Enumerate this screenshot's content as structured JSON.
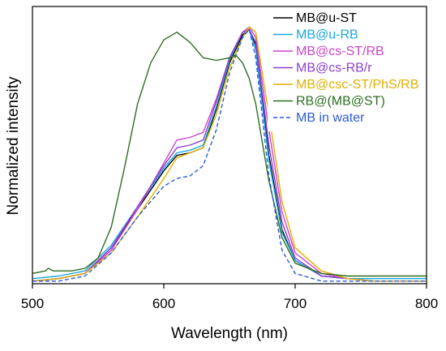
{
  "chart_data": {
    "type": "line",
    "title": "",
    "xlabel": "Wavelength (nm)",
    "ylabel": "Normalized intensity",
    "xlim": [
      500,
      800
    ],
    "ylim": [
      0,
      1.08
    ],
    "xticks": [
      500,
      600,
      700,
      800
    ],
    "xtick_labels": [
      "500",
      "600",
      "700",
      "800"
    ],
    "grid": false,
    "legend_position": "top-right",
    "series": [
      {
        "name": "MB@u-ST",
        "color": "#000000",
        "dash": "solid",
        "x": [
          500,
          520,
          540,
          560,
          580,
          600,
          610,
          620,
          630,
          640,
          650,
          660,
          665,
          670,
          680,
          690,
          700,
          720,
          740,
          760,
          800
        ],
        "y": [
          0.01,
          0.02,
          0.04,
          0.14,
          0.29,
          0.44,
          0.5,
          0.51,
          0.53,
          0.68,
          0.86,
          0.97,
          0.99,
          0.93,
          0.5,
          0.21,
          0.09,
          0.03,
          0.02,
          0.01,
          0.01
        ]
      },
      {
        "name": "MB@u-RB",
        "color": "#1aa7e0",
        "dash": "solid",
        "x": [
          500,
          520,
          540,
          560,
          580,
          600,
          610,
          620,
          630,
          640,
          650,
          660,
          665,
          670,
          680,
          690,
          700,
          720,
          740,
          760,
          800
        ],
        "y": [
          0.02,
          0.03,
          0.05,
          0.15,
          0.3,
          0.45,
          0.51,
          0.52,
          0.54,
          0.69,
          0.87,
          0.98,
          0.99,
          0.91,
          0.48,
          0.2,
          0.09,
          0.03,
          0.02,
          0.02,
          0.02
        ]
      },
      {
        "name": "MB@cs-ST/RB",
        "color": "#cc44cc",
        "dash": "solid",
        "x": [
          500,
          520,
          540,
          560,
          580,
          600,
          610,
          620,
          630,
          640,
          650,
          660,
          665,
          670,
          680,
          690,
          700,
          720,
          740,
          760,
          800
        ],
        "y": [
          0.01,
          0.02,
          0.04,
          0.13,
          0.29,
          0.47,
          0.56,
          0.57,
          0.59,
          0.72,
          0.88,
          0.98,
          1.0,
          0.96,
          0.6,
          0.28,
          0.12,
          0.04,
          0.02,
          0.01,
          0.01
        ]
      },
      {
        "name": "MB@cs-RB/r",
        "color": "#8a3fd0",
        "dash": "solid",
        "x": [
          500,
          520,
          540,
          560,
          580,
          600,
          610,
          620,
          630,
          640,
          650,
          660,
          665,
          670,
          680,
          690,
          700,
          720,
          740,
          760,
          800
        ],
        "y": [
          0.01,
          0.02,
          0.04,
          0.14,
          0.3,
          0.46,
          0.53,
          0.54,
          0.56,
          0.71,
          0.88,
          0.98,
          0.99,
          0.94,
          0.54,
          0.24,
          0.1,
          0.03,
          0.02,
          0.01,
          0.01
        ]
      },
      {
        "name": "MB@csc-ST/PhS/RB",
        "color": "#e0b000",
        "dash": "solid",
        "x": [
          500,
          520,
          540,
          560,
          580,
          600,
          610,
          620,
          630,
          640,
          650,
          660,
          665,
          670,
          680,
          690,
          700,
          720,
          740,
          760,
          800
        ],
        "y": [
          0.01,
          0.02,
          0.04,
          0.12,
          0.26,
          0.41,
          0.49,
          0.51,
          0.53,
          0.66,
          0.84,
          0.96,
          1.0,
          0.98,
          0.66,
          0.32,
          0.14,
          0.05,
          0.02,
          0.01,
          0.01
        ]
      },
      {
        "name": "RB@(MB@ST)",
        "color": "#2b6e1f",
        "dash": "solid",
        "x": [
          500,
          510,
          512,
          516,
          520,
          530,
          540,
          550,
          560,
          570,
          580,
          590,
          600,
          610,
          620,
          630,
          640,
          650,
          655,
          660,
          665,
          670,
          680,
          690,
          700,
          720,
          740,
          760,
          780,
          800
        ],
        "y": [
          0.04,
          0.05,
          0.06,
          0.05,
          0.05,
          0.05,
          0.06,
          0.1,
          0.22,
          0.45,
          0.7,
          0.86,
          0.95,
          0.98,
          0.94,
          0.88,
          0.87,
          0.88,
          0.89,
          0.86,
          0.8,
          0.7,
          0.4,
          0.18,
          0.08,
          0.04,
          0.03,
          0.03,
          0.03,
          0.03
        ]
      },
      {
        "name": "MB in water",
        "color": "#2a5bd7",
        "dash": "dashed",
        "x": [
          500,
          520,
          540,
          560,
          580,
          600,
          610,
          620,
          630,
          640,
          650,
          660,
          665,
          670,
          680,
          690,
          700,
          720,
          740,
          760,
          800
        ],
        "y": [
          0.01,
          0.01,
          0.03,
          0.12,
          0.26,
          0.38,
          0.41,
          0.42,
          0.46,
          0.6,
          0.82,
          0.96,
          0.99,
          0.88,
          0.42,
          0.13,
          0.04,
          0.01,
          0.01,
          0.01,
          0.01
        ]
      }
    ]
  }
}
